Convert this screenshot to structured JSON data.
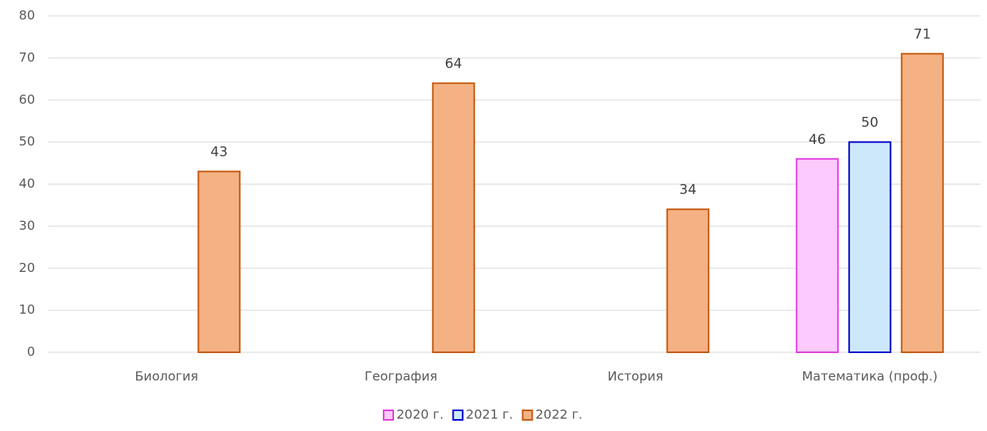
{
  "chart_data": {
    "type": "bar",
    "categories": [
      "Биология",
      "География",
      "История",
      "Математика (проф.)"
    ],
    "series": [
      {
        "name": "2020 г.",
        "color": "#fccafc",
        "stroke": "#e040e0",
        "values": [
          null,
          null,
          null,
          46
        ]
      },
      {
        "name": "2021 г.",
        "color": "#cce8fa",
        "stroke": "#0000cc",
        "values": [
          null,
          null,
          null,
          50
        ]
      },
      {
        "name": "2022 г.",
        "color": "#f4b183",
        "stroke": "#c55a11",
        "values": [
          43,
          64,
          34,
          71
        ]
      }
    ],
    "ylim": [
      0,
      80
    ],
    "yticks": [
      0,
      10,
      20,
      30,
      40,
      50,
      60,
      70,
      80
    ],
    "grid": true,
    "legend": "bottom"
  }
}
